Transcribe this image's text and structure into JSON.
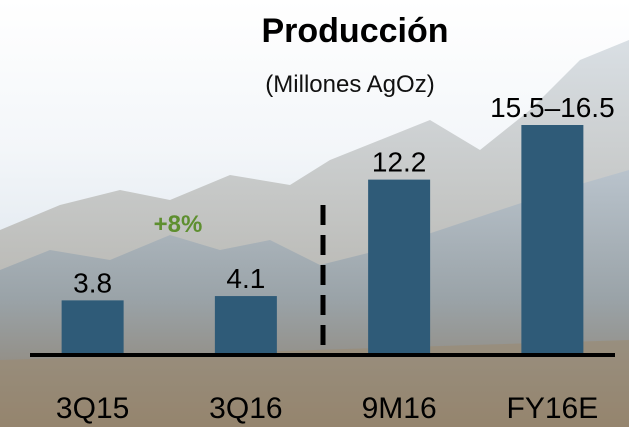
{
  "chart_data": {
    "type": "bar",
    "title": "Producción",
    "subtitle": "(Millones AgOz)",
    "categories": [
      "3Q15",
      "3Q16",
      "9M16",
      "FY16E"
    ],
    "values": [
      3.8,
      4.1,
      12.2,
      16
    ],
    "value_labels": [
      "3.8",
      "4.1",
      "12.2",
      "15.5–16.5"
    ],
    "color": "#2f5b78",
    "annotation": "+8%",
    "annotation_color": "#5e8f2f",
    "ylim": [
      0,
      16
    ]
  }
}
